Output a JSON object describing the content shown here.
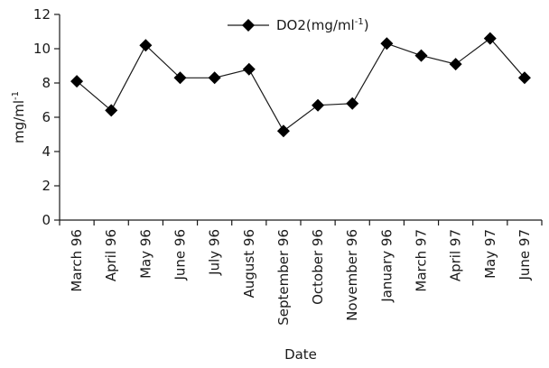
{
  "chart_data": {
    "type": "line",
    "title": "",
    "xlabel": "Date",
    "ylabel": "mg/ml-1",
    "ylabel_main": "mg/ml",
    "ylabel_sup": "-1",
    "ylim": [
      0,
      12
    ],
    "yticks": [
      0,
      2,
      4,
      6,
      8,
      10,
      12
    ],
    "grid": false,
    "legend_position": "top-center",
    "categories": [
      "March 96",
      "April 96",
      "May 96",
      "June 96",
      "July 96",
      "August 96",
      "September 96",
      "October 96",
      "November 96",
      "January 96",
      "March 97",
      "April 97",
      "May 97",
      "June 97"
    ],
    "series": [
      {
        "name": "DO2(mg/ml-1)",
        "name_main": "DO2(mg/ml",
        "name_sup": "-1",
        "name_close": ")",
        "marker": "diamond",
        "color": "#000000",
        "values": [
          8.1,
          6.4,
          10.2,
          8.3,
          8.3,
          8.8,
          5.2,
          6.7,
          6.8,
          10.3,
          9.6,
          9.1,
          10.6,
          8.3
        ]
      }
    ]
  }
}
